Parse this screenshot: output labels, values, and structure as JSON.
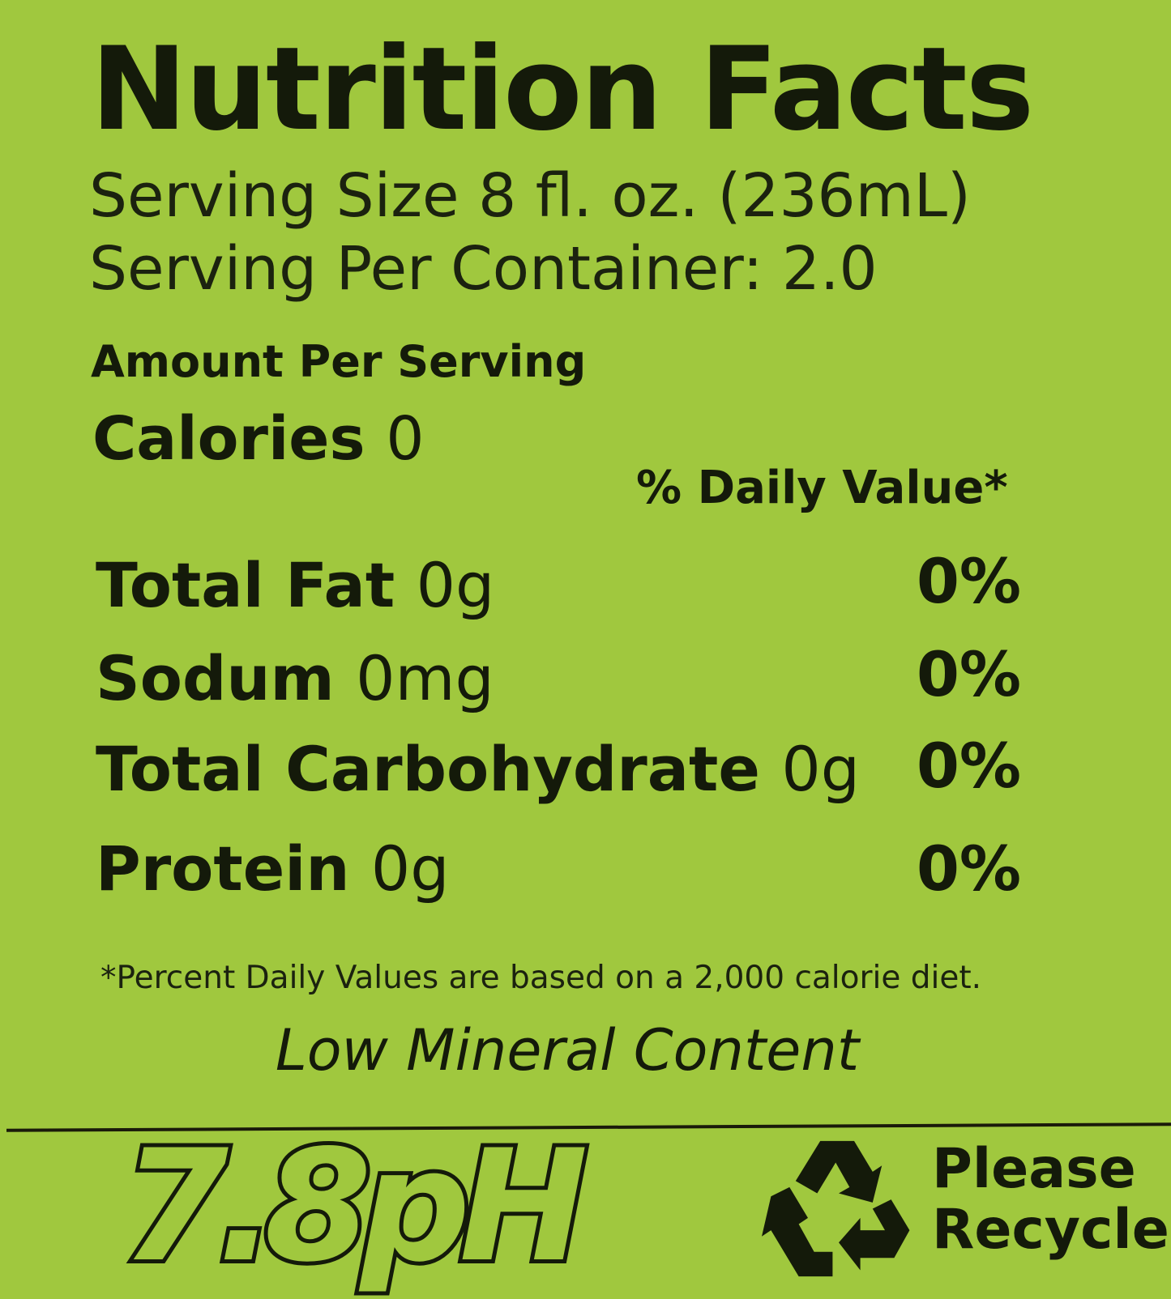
{
  "label": {
    "title": "Nutrition Facts",
    "serving_size": "Serving Size 8 fl. oz. (236mL)",
    "servings_per_container": "Serving Per Container: 2.0",
    "amount_per_serving": "Amount Per Serving",
    "calories_label": "Calories",
    "calories_value": "0",
    "daily_value_header": "% Daily Value*",
    "nutrients": [
      {
        "name": "Total Fat",
        "amount": "0g",
        "dv": "0%"
      },
      {
        "name": "Sodum",
        "amount": "0mg",
        "dv": "0%"
      },
      {
        "name": "Total Carbohydrate",
        "amount": "0g",
        "dv": "0%"
      },
      {
        "name": "Protein",
        "amount": "0g",
        "dv": "0%"
      }
    ],
    "footnote": "*Percent Daily Values are based on a 2,000 calorie diet.",
    "tagline": "Low Mineral Content"
  },
  "footer": {
    "ph_logo": "7.8pH",
    "recycle_icon": "recycle-icon",
    "recycle_line1": "Please",
    "recycle_line2": "Recycle"
  },
  "colors": {
    "background": "#a0c83e",
    "ink": "#141a0a"
  }
}
